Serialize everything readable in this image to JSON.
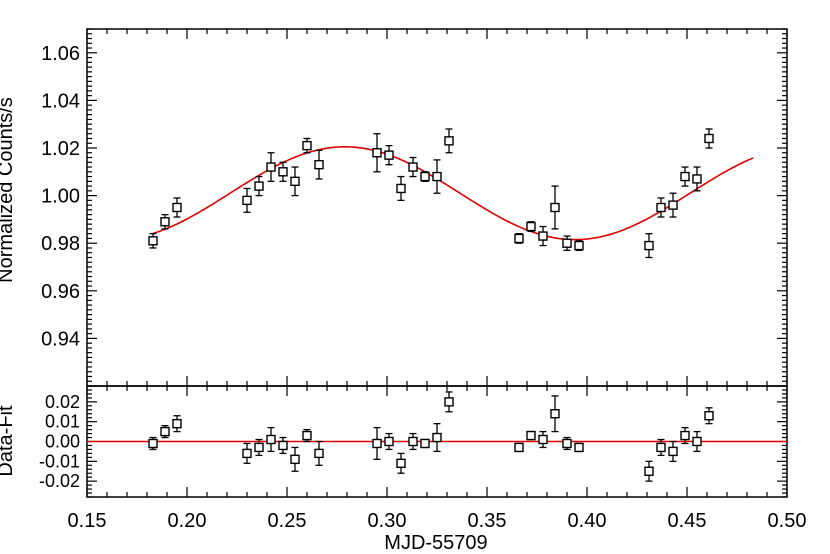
{
  "chart_data": [
    {
      "type": "scatter",
      "title": "",
      "xlabel": "",
      "ylabel": "Normalized Counts/s",
      "xlim": [
        0.15,
        0.5
      ],
      "ylim": [
        0.92,
        1.07
      ],
      "ytick_labels": [
        "0.94",
        "0.96",
        "0.98",
        "1.00",
        "1.02",
        "1.04",
        "1.06"
      ],
      "grid": false,
      "series": [
        {
          "x": [
            0.183,
            0.189,
            0.195,
            0.23,
            0.236,
            0.242,
            0.248,
            0.254,
            0.26,
            0.266,
            0.295,
            0.301,
            0.307,
            0.313,
            0.319,
            0.325,
            0.331,
            0.366,
            0.372,
            0.378,
            0.384,
            0.39,
            0.396,
            0.431,
            0.437,
            0.443,
            0.449,
            0.455,
            0.461
          ],
          "y": [
            0.981,
            0.989,
            0.995,
            0.998,
            1.004,
            1.012,
            1.01,
            1.006,
            1.021,
            1.013,
            1.018,
            1.017,
            1.003,
            1.012,
            1.008,
            1.008,
            1.023,
            0.982,
            0.987,
            0.983,
            0.995,
            0.98,
            0.979,
            0.979,
            0.995,
            0.996,
            1.008,
            1.007,
            1.024
          ],
          "yerr": [
            0.003,
            0.003,
            0.004,
            0.005,
            0.004,
            0.006,
            0.004,
            0.006,
            0.003,
            0.006,
            0.008,
            0.004,
            0.005,
            0.004,
            0.002,
            0.007,
            0.005,
            0.002,
            0.002,
            0.004,
            0.009,
            0.003,
            0.002,
            0.005,
            0.004,
            0.005,
            0.004,
            0.005,
            0.004
          ],
          "color": "#000000",
          "marker": "open-square"
        },
        {
          "type": "line",
          "model": {
            "offset": 1.001,
            "amplitude": 0.0195,
            "period": 0.23,
            "peak_x": 0.279
          },
          "x_range": [
            0.183,
            0.483
          ],
          "color": "#e00000"
        }
      ]
    },
    {
      "type": "scatter",
      "title": "",
      "xlabel": "MJD-55709",
      "ylabel": "Data-Fit",
      "xlim": [
        0.15,
        0.5
      ],
      "ylim": [
        -0.028,
        0.028
      ],
      "xtick_labels": [
        "0.15",
        "0.20",
        "0.25",
        "0.30",
        "0.35",
        "0.40",
        "0.45",
        "0.50"
      ],
      "ytick_labels": [
        "0.02",
        "0.01",
        "0.00",
        "-0.01",
        "-0.02"
      ],
      "grid": false,
      "series": [
        {
          "x": [
            0.183,
            0.189,
            0.195,
            0.23,
            0.236,
            0.242,
            0.248,
            0.254,
            0.26,
            0.266,
            0.295,
            0.301,
            0.307,
            0.313,
            0.319,
            0.325,
            0.331,
            0.366,
            0.372,
            0.378,
            0.384,
            0.39,
            0.396,
            0.431,
            0.437,
            0.443,
            0.449,
            0.455,
            0.461
          ],
          "y": [
            -0.001,
            0.005,
            0.009,
            -0.006,
            -0.003,
            0.001,
            -0.002,
            -0.009,
            0.003,
            -0.006,
            -0.001,
            0.0,
            -0.011,
            0.0,
            -0.001,
            0.002,
            0.02,
            -0.003,
            0.003,
            0.001,
            0.014,
            -0.001,
            -0.003,
            -0.015,
            -0.003,
            -0.005,
            0.003,
            0.0,
            0.013
          ],
          "yerr": [
            0.003,
            0.003,
            0.004,
            0.005,
            0.004,
            0.006,
            0.004,
            0.006,
            0.003,
            0.006,
            0.008,
            0.004,
            0.005,
            0.004,
            0.002,
            0.007,
            0.005,
            0.002,
            0.002,
            0.004,
            0.009,
            0.003,
            0.002,
            0.005,
            0.004,
            0.005,
            0.004,
            0.005,
            0.004
          ],
          "color": "#000000",
          "marker": "open-square"
        },
        {
          "type": "line",
          "y_constant": 0.0,
          "color": "#e00000"
        }
      ]
    }
  ]
}
